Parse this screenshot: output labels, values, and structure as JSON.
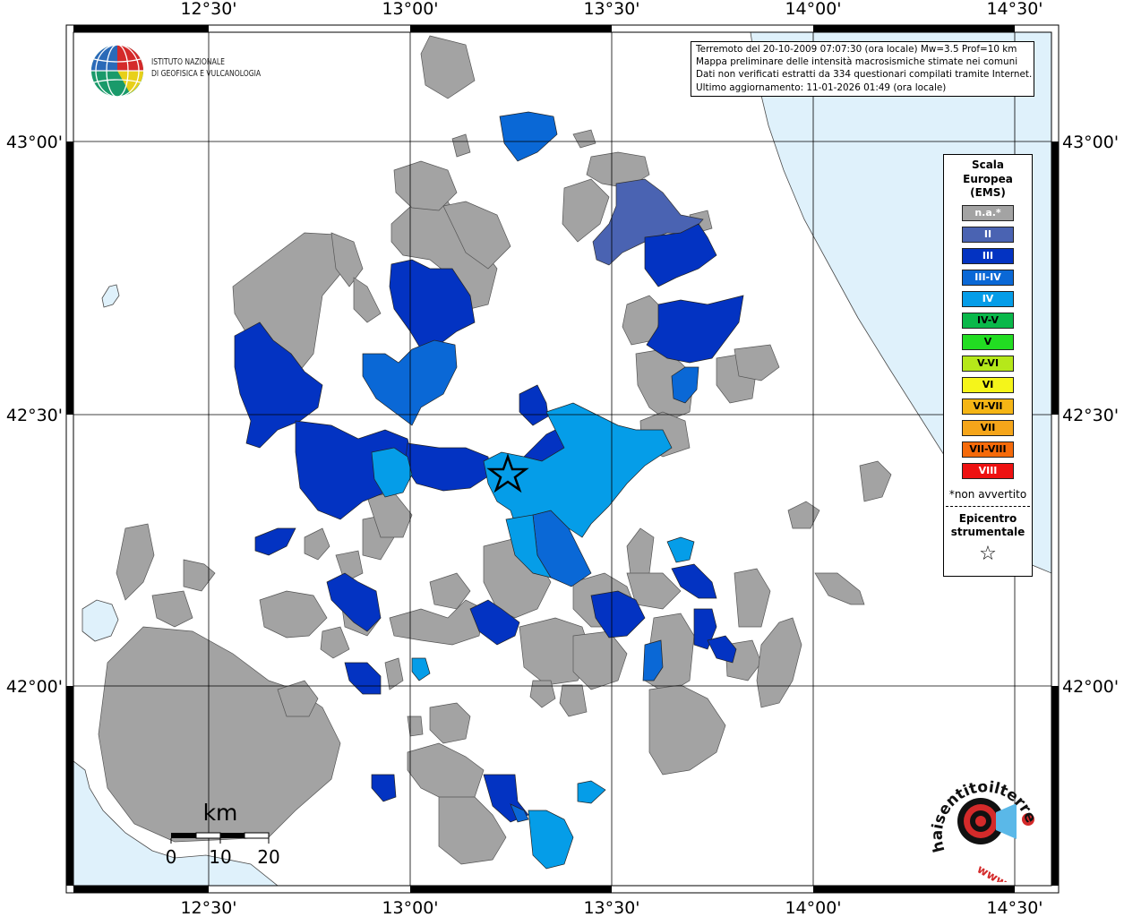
{
  "map": {
    "lon_ticks": [
      "12°30'",
      "13°00'",
      "13°30'",
      "14°00'",
      "14°30'"
    ],
    "lat_ticks": [
      "43°00'",
      "42°30'",
      "42°00'"
    ]
  },
  "info_box": {
    "line1": "Terremoto del 20-10-2009 07:07:30 (ora locale) Mw=3.5 Prof=10 km",
    "line2": "Mappa preliminare delle intensità macrosismiche stimate nei comuni",
    "line3": "Dati non verificati estratti da 334 questionari compilati tramite Internet.",
    "line4": "Ultimo aggiornamento: 11-01-2026 01:49 (ora locale)"
  },
  "legend": {
    "title_line1": "Scala",
    "title_line2": "Europea",
    "title_line3": "(EMS)",
    "items": [
      {
        "label": "n.a.*",
        "color": "#a3a3a3",
        "text_color": "#ffffff"
      },
      {
        "label": "II",
        "color": "#4a63b2",
        "text_color": "#ffffff"
      },
      {
        "label": "III",
        "color": "#0333c2",
        "text_color": "#ffffff"
      },
      {
        "label": "III-IV",
        "color": "#0a68d6",
        "text_color": "#ffffff"
      },
      {
        "label": "IV",
        "color": "#059de8",
        "text_color": "#ffffff"
      },
      {
        "label": "IV-V",
        "color": "#09b84a",
        "text_color": "#000000"
      },
      {
        "label": "V",
        "color": "#22dd22",
        "text_color": "#000000"
      },
      {
        "label": "V-VI",
        "color": "#b5e81a",
        "text_color": "#000000"
      },
      {
        "label": "VI",
        "color": "#f5f51a",
        "text_color": "#000000"
      },
      {
        "label": "VI-VII",
        "color": "#f5b515",
        "text_color": "#000000"
      },
      {
        "label": "VII",
        "color": "#f5a51a",
        "text_color": "#000000"
      },
      {
        "label": "VII-VIII",
        "color": "#f56a0a",
        "text_color": "#000000"
      },
      {
        "label": "VIII",
        "color": "#ee1111",
        "text_color": "#ffffff"
      }
    ],
    "note": "*non avvertito",
    "epicentre_line1": "Epicentro",
    "epicentre_line2": "strumentale",
    "star": "☆"
  },
  "ingv": {
    "line1": "ISTITUTO NAZIONALE",
    "line2": "DI GEOFISICA E VULCANOLOGIA"
  },
  "scale_bar": {
    "unit": "km",
    "labels": [
      "0",
      "10",
      "20"
    ]
  },
  "hsit": {
    "text": "haisentitoilterremoto.it",
    "prefix": "www."
  },
  "colors": {
    "sea": "#dff1fb",
    "land": "#ffffff",
    "na": "#a3a3a3"
  }
}
